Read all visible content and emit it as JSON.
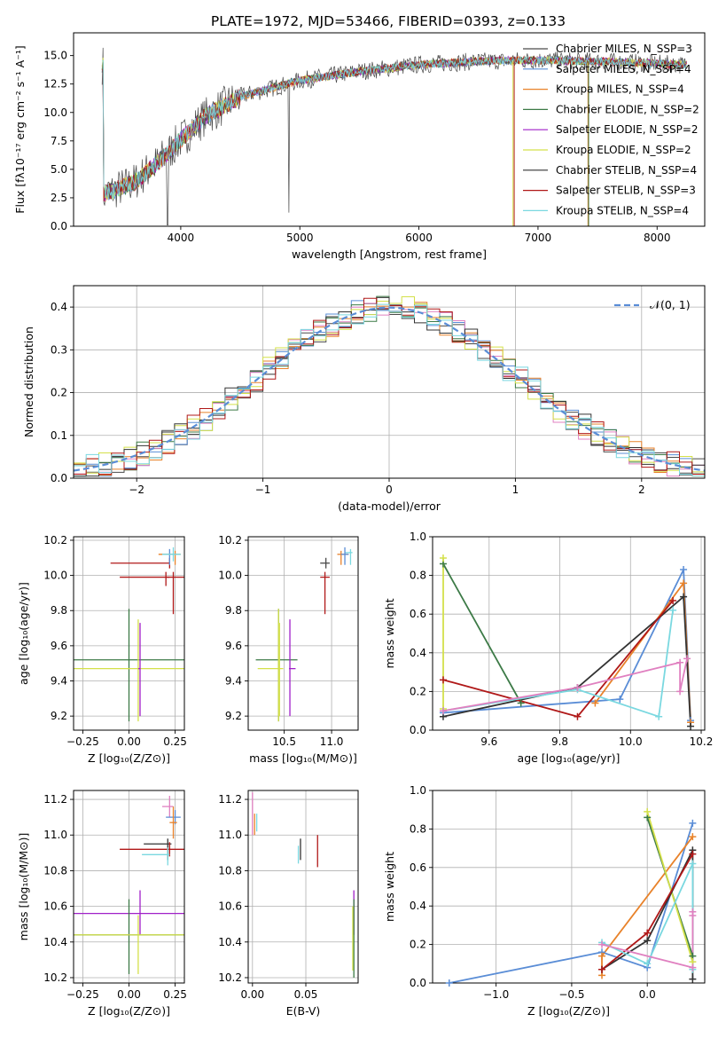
{
  "figure": {
    "title": "PLATE=1972, MJD=53466, FIBERID=0393, z=0.133"
  },
  "series_styles": [
    {
      "name": "Chabrier MILES",
      "nssp": "3",
      "color": "#4a4a4a"
    },
    {
      "name": "Salpeter MILES",
      "nssp": "4",
      "color": "#5a8dd6"
    },
    {
      "name": "Kroupa MILES",
      "nssp": "4",
      "color": "#e8822a"
    },
    {
      "name": "Chabrier ELODIE",
      "nssp": "2",
      "color": "#3c7a46"
    },
    {
      "name": "Salpeter ELODIE",
      "nssp": "2",
      "color": "#a020c8"
    },
    {
      "name": "Kroupa ELODIE",
      "nssp": "2",
      "color": "#d4e04a"
    },
    {
      "name": "Chabrier STELIB",
      "nssp": "4",
      "color": "#333333"
    },
    {
      "name": "Salpeter STELIB",
      "nssp": "3",
      "color": "#b01818"
    },
    {
      "name": "Kroupa STELIB",
      "nssp": "4",
      "color": "#7ad8e0"
    }
  ],
  "chart_data": [
    {
      "id": "spectrum",
      "type": "line",
      "xlabel": "wavelength [Angstrom, rest frame]",
      "ylabel": "Flux [fλ10⁻¹⁷ erg cm⁻² s⁻¹ A⁻¹]",
      "xlim": [
        3100,
        8400
      ],
      "ylim": [
        0,
        17
      ],
      "xticks": [
        4000,
        5000,
        6000,
        7000,
        8000
      ],
      "yticks": [
        0.0,
        2.5,
        5.0,
        7.5,
        10.0,
        12.5,
        15.0
      ],
      "legend_labels": [
        "Chabrier MILES, N_SSP=3",
        "Salpeter MILES, N_SSP=4",
        "Kroupa MILES, N_SSP=4",
        "Chabrier ELODIE, N_SSP=2",
        "Salpeter ELODIE, N_SSP=2",
        "Kroupa ELODIE, N_SSP=2",
        "Chabrier STELIB, N_SSP=4",
        "Salpeter STELIB, N_SSP=3",
        "Kroupa STELIB, N_SSP=4"
      ],
      "continuum_points": [
        [
          3350,
          2.8
        ],
        [
          3600,
          3.8
        ],
        [
          3800,
          5.5
        ],
        [
          4000,
          7.6
        ],
        [
          4200,
          9.6
        ],
        [
          4500,
          11.4
        ],
        [
          5000,
          12.8
        ],
        [
          5500,
          13.6
        ],
        [
          6000,
          14.2
        ],
        [
          6500,
          14.5
        ],
        [
          7000,
          14.6
        ],
        [
          7500,
          14.5
        ],
        [
          8000,
          14.3
        ],
        [
          8200,
          14.2
        ]
      ],
      "grid": false,
      "legend_position": "right"
    },
    {
      "id": "residuals",
      "type": "histogram",
      "xlabel": "(data-model)/error",
      "ylabel": "Normed distribution",
      "xlim": [
        -2.5,
        2.5
      ],
      "ylim": [
        0,
        0.45
      ],
      "xticks": [
        -2,
        -1,
        0,
        1,
        2
      ],
      "yticks": [
        0.0,
        0.1,
        0.2,
        0.3,
        0.4
      ],
      "legend_label": "𝒩(0, 1)",
      "gaussian": {
        "mean": 0,
        "sigma": 1
      },
      "grid": true,
      "legend_position": "top-right"
    },
    {
      "id": "z-age",
      "type": "scatter",
      "xlabel": "Z [log₁₀(Z/Z⊙)]",
      "ylabel": "age  [log₁₀(age/yr)]",
      "xlim": [
        -0.3,
        0.3
      ],
      "ylim": [
        9.12,
        10.22
      ],
      "xticks": [
        -0.25,
        0.0,
        0.25
      ],
      "yticks": [
        9.2,
        9.4,
        9.6,
        9.8,
        10.0,
        10.2
      ],
      "crosses": [
        {
          "s": 7,
          "x": 0.22,
          "y": 10.07,
          "xe": [
            -0.1,
            0.22
          ],
          "ye": [
            10.04,
            10.1
          ]
        },
        {
          "s": 7,
          "x": 0.2,
          "y": 9.99,
          "xe": [
            0.2,
            0.22
          ],
          "ye": [
            9.94,
            10.02
          ]
        },
        {
          "s": 1,
          "x": 0.22,
          "y": 10.12,
          "xe": [
            0.18,
            0.26
          ],
          "ye": [
            10.06,
            10.15
          ]
        },
        {
          "s": 2,
          "x": 0.25,
          "y": 10.12,
          "xe": [
            0.16,
            0.28
          ],
          "ye": [
            10.06,
            10.14
          ]
        },
        {
          "s": 8,
          "x": 0.24,
          "y": 10.12,
          "xe": [
            0.18,
            0.28
          ],
          "ye": [
            10.08,
            10.16
          ]
        },
        {
          "s": 7,
          "x": 0.24,
          "y": 9.99,
          "xe": [
            -0.05,
            0.3
          ],
          "ye": [
            9.78,
            10.02
          ]
        },
        {
          "s": 3,
          "x": 0.0,
          "y": 9.52,
          "xe": [
            -0.3,
            0.3
          ],
          "ye": [
            9.17,
            9.81
          ]
        },
        {
          "s": 5,
          "x": 0.05,
          "y": 9.47,
          "xe": [
            -0.3,
            0.3
          ],
          "ye": [
            9.17,
            9.75
          ]
        },
        {
          "s": 4,
          "x": 0.06,
          "y": 9.47,
          "xe": [
            0.05,
            0.06
          ],
          "ye": [
            9.2,
            9.73
          ]
        }
      ]
    },
    {
      "id": "mass-age",
      "type": "scatter",
      "xlabel": "mass [log₁₀(M/M⊙)]",
      "ylabel": "",
      "xlim": [
        10.12,
        11.28
      ],
      "ylim": [
        9.12,
        10.22
      ],
      "xticks": [
        10.5,
        11.0
      ],
      "yticks": [
        9.2,
        9.4,
        9.6,
        9.8,
        10.0,
        10.2
      ],
      "crosses": [
        {
          "s": 0,
          "x": 10.94,
          "y": 10.07,
          "xe": [
            10.88,
            10.98
          ],
          "ye": [
            10.04,
            10.1
          ]
        },
        {
          "s": 7,
          "x": 10.93,
          "y": 9.99,
          "xe": [
            10.88,
            10.98
          ],
          "ye": [
            9.78,
            10.02
          ]
        },
        {
          "s": 8,
          "x": 11.2,
          "y": 10.13,
          "xe": [
            11.14,
            11.22
          ],
          "ye": [
            10.06,
            10.15
          ]
        },
        {
          "s": 2,
          "x": 11.1,
          "y": 10.12,
          "xe": [
            11.06,
            11.18
          ],
          "ye": [
            10.06,
            10.14
          ]
        },
        {
          "s": 1,
          "x": 11.14,
          "y": 10.12,
          "xe": [
            11.1,
            11.18
          ],
          "ye": [
            10.06,
            10.16
          ]
        },
        {
          "s": 3,
          "x": 10.44,
          "y": 9.52,
          "xe": [
            10.2,
            10.64
          ],
          "ye": [
            9.17,
            9.81
          ]
        },
        {
          "s": 4,
          "x": 10.56,
          "y": 9.47,
          "xe": [
            10.55,
            10.62
          ],
          "ye": [
            9.2,
            9.75
          ]
        },
        {
          "s": 5,
          "x": 10.44,
          "y": 9.47,
          "xe": [
            10.22,
            10.49
          ],
          "ye": [
            9.17,
            9.81
          ]
        },
        {
          "s": 5,
          "x": 10.45,
          "y": 9.47,
          "xe": [
            10.44,
            10.46
          ],
          "ye": [
            9.2,
            9.73
          ]
        }
      ]
    },
    {
      "id": "age-weight",
      "type": "line",
      "xlabel": "age  [log₁₀(age/yr)]",
      "ylabel": "mass weight",
      "xlim": [
        9.44,
        10.21
      ],
      "ylim": [
        0,
        1.0
      ],
      "xticks": [
        9.6,
        9.8,
        10.0,
        10.2
      ],
      "yticks": [
        0.0,
        0.2,
        0.4,
        0.6,
        0.8,
        1.0
      ],
      "grid": true,
      "series": [
        {
          "s": 3,
          "points": [
            [
              9.47,
              0.86
            ],
            [
              9.69,
              0.14
            ]
          ]
        },
        {
          "s": 5,
          "points": [
            [
              9.47,
              0.89
            ],
            [
              9.47,
              0.11
            ]
          ]
        },
        {
          "s": 1,
          "points": [
            [
              9.47,
              0.09
            ],
            [
              9.97,
              0.16
            ],
            [
              10.15,
              0.83
            ],
            [
              10.17,
              0.05
            ]
          ]
        },
        {
          "s": 2,
          "points": [
            [
              9.9,
              0.14
            ],
            [
              10.15,
              0.76
            ],
            [
              10.17,
              0.04
            ]
          ]
        },
        {
          "s": 6,
          "points": [
            [
              9.47,
              0.07
            ],
            [
              9.85,
              0.22
            ],
            [
              10.15,
              0.69
            ],
            [
              10.17,
              0.02
            ]
          ]
        },
        {
          "s": 7,
          "points": [
            [
              9.47,
              0.26
            ],
            [
              9.85,
              0.07
            ],
            [
              10.12,
              0.67
            ]
          ]
        },
        {
          "s": 8,
          "points": [
            [
              9.47,
              0.1
            ],
            [
              9.85,
              0.21
            ],
            [
              10.08,
              0.07
            ],
            [
              10.12,
              0.62
            ]
          ]
        },
        {
          "s": 9,
          "points": [
            [
              9.47,
              0.1
            ],
            [
              9.85,
              0.22
            ],
            [
              10.14,
              0.35
            ],
            [
              10.14,
              0.2
            ],
            [
              10.16,
              0.37
            ]
          ]
        }
      ]
    },
    {
      "id": "z-mass",
      "type": "scatter",
      "xlabel": "Z [log₁₀(Z/Z⊙)]",
      "ylabel": "mass [log₁₀(M/M⊙)]",
      "xlim": [
        -0.3,
        0.3
      ],
      "ylim": [
        10.17,
        11.25
      ],
      "xticks": [
        -0.25,
        0.0,
        0.25
      ],
      "yticks": [
        10.2,
        10.4,
        10.6,
        10.8,
        11.0,
        11.2
      ],
      "crosses": [
        {
          "s": 9,
          "x": 0.22,
          "y": 11.16,
          "xe": [
            0.18,
            0.24
          ],
          "ye": [
            11.1,
            11.22
          ]
        },
        {
          "s": 1,
          "x": 0.25,
          "y": 11.1,
          "xe": [
            0.2,
            0.28
          ],
          "ye": [
            11.06,
            11.14
          ]
        },
        {
          "s": 2,
          "x": 0.24,
          "y": 11.07,
          "xe": [
            0.22,
            0.26
          ],
          "ye": [
            10.98,
            11.16
          ]
        },
        {
          "s": 6,
          "x": 0.21,
          "y": 10.95,
          "xe": [
            0.08,
            0.23
          ],
          "ye": [
            10.86,
            10.98
          ]
        },
        {
          "s": 7,
          "x": 0.22,
          "y": 10.92,
          "xe": [
            -0.05,
            0.3
          ],
          "ye": [
            10.88,
            10.96
          ]
        },
        {
          "s": 8,
          "x": 0.21,
          "y": 10.89,
          "xe": [
            0.07,
            0.22
          ],
          "ye": [
            10.83,
            10.93
          ]
        },
        {
          "s": 4,
          "x": 0.06,
          "y": 10.56,
          "xe": [
            -0.3,
            0.3
          ],
          "ye": [
            10.44,
            10.69
          ]
        },
        {
          "s": 3,
          "x": 0.0,
          "y": 10.44,
          "xe": [
            -0.3,
            0.3
          ],
          "ye": [
            10.22,
            10.64
          ]
        },
        {
          "s": 5,
          "x": 0.05,
          "y": 10.44,
          "xe": [
            -0.3,
            0.3
          ],
          "ye": [
            10.22,
            10.55
          ]
        }
      ]
    },
    {
      "id": "ebv-mass",
      "type": "errorbar",
      "xlabel": "E(B-V)",
      "ylabel": "",
      "xlim": [
        -0.004,
        0.099
      ],
      "ylim": [
        10.17,
        11.25
      ],
      "xticks": [
        0.0,
        0.05
      ],
      "yticks": [
        10.2,
        10.4,
        10.6,
        10.8,
        11.0,
        11.2
      ],
      "bars": [
        {
          "s": 9,
          "x": 0.0,
          "ye": [
            11.0,
            11.24
          ]
        },
        {
          "s": 2,
          "x": 0.002,
          "ye": [
            11.0,
            11.12
          ]
        },
        {
          "s": 8,
          "x": 0.004,
          "ye": [
            11.02,
            11.12
          ]
        },
        {
          "s": 8,
          "x": 0.043,
          "ye": [
            10.84,
            10.94
          ]
        },
        {
          "s": 6,
          "x": 0.045,
          "ye": [
            10.86,
            10.98
          ]
        },
        {
          "s": 7,
          "x": 0.061,
          "ye": [
            10.82,
            11.0
          ]
        },
        {
          "s": 4,
          "x": 0.095,
          "ye": [
            10.44,
            10.69
          ]
        },
        {
          "s": 3,
          "x": 0.095,
          "ye": [
            10.2,
            10.64
          ]
        },
        {
          "s": 5,
          "x": 0.094,
          "ye": [
            10.24,
            10.6
          ]
        }
      ]
    },
    {
      "id": "z-weight",
      "type": "line",
      "xlabel": "Z [log₁₀(Z/Z⊙)]",
      "ylabel": "mass weight",
      "xlim": [
        -1.42,
        0.38
      ],
      "ylim": [
        0,
        1.0
      ],
      "xticks": [
        -1.0,
        -0.5,
        0.0
      ],
      "yticks": [
        0.0,
        0.2,
        0.4,
        0.6,
        0.8,
        1.0
      ],
      "grid": true,
      "series": [
        {
          "s": 1,
          "points": [
            [
              -1.31,
              0.0
            ],
            [
              -0.3,
              0.16
            ],
            [
              0.0,
              0.08
            ],
            [
              0.3,
              0.83
            ]
          ]
        },
        {
          "s": 2,
          "points": [
            [
              -0.3,
              0.04
            ],
            [
              -0.3,
              0.14
            ],
            [
              0.3,
              0.76
            ]
          ]
        },
        {
          "s": 3,
          "points": [
            [
              0.0,
              0.86
            ],
            [
              0.3,
              0.14
            ]
          ]
        },
        {
          "s": 5,
          "points": [
            [
              0.0,
              0.89
            ],
            [
              0.3,
              0.11
            ]
          ]
        },
        {
          "s": 6,
          "points": [
            [
              -0.3,
              0.07
            ],
            [
              0.0,
              0.22
            ],
            [
              0.3,
              0.69
            ],
            [
              0.3,
              0.02
            ]
          ]
        },
        {
          "s": 7,
          "points": [
            [
              -0.3,
              0.07
            ],
            [
              0.0,
              0.26
            ],
            [
              0.3,
              0.67
            ]
          ]
        },
        {
          "s": 8,
          "points": [
            [
              -0.3,
              0.21
            ],
            [
              0.0,
              0.1
            ],
            [
              0.3,
              0.62
            ],
            [
              0.3,
              0.07
            ]
          ]
        },
        {
          "s": 9,
          "points": [
            [
              -0.3,
              0.2
            ],
            [
              0.3,
              0.08
            ],
            [
              0.3,
              0.35
            ],
            [
              0.3,
              0.37
            ]
          ]
        }
      ]
    }
  ]
}
